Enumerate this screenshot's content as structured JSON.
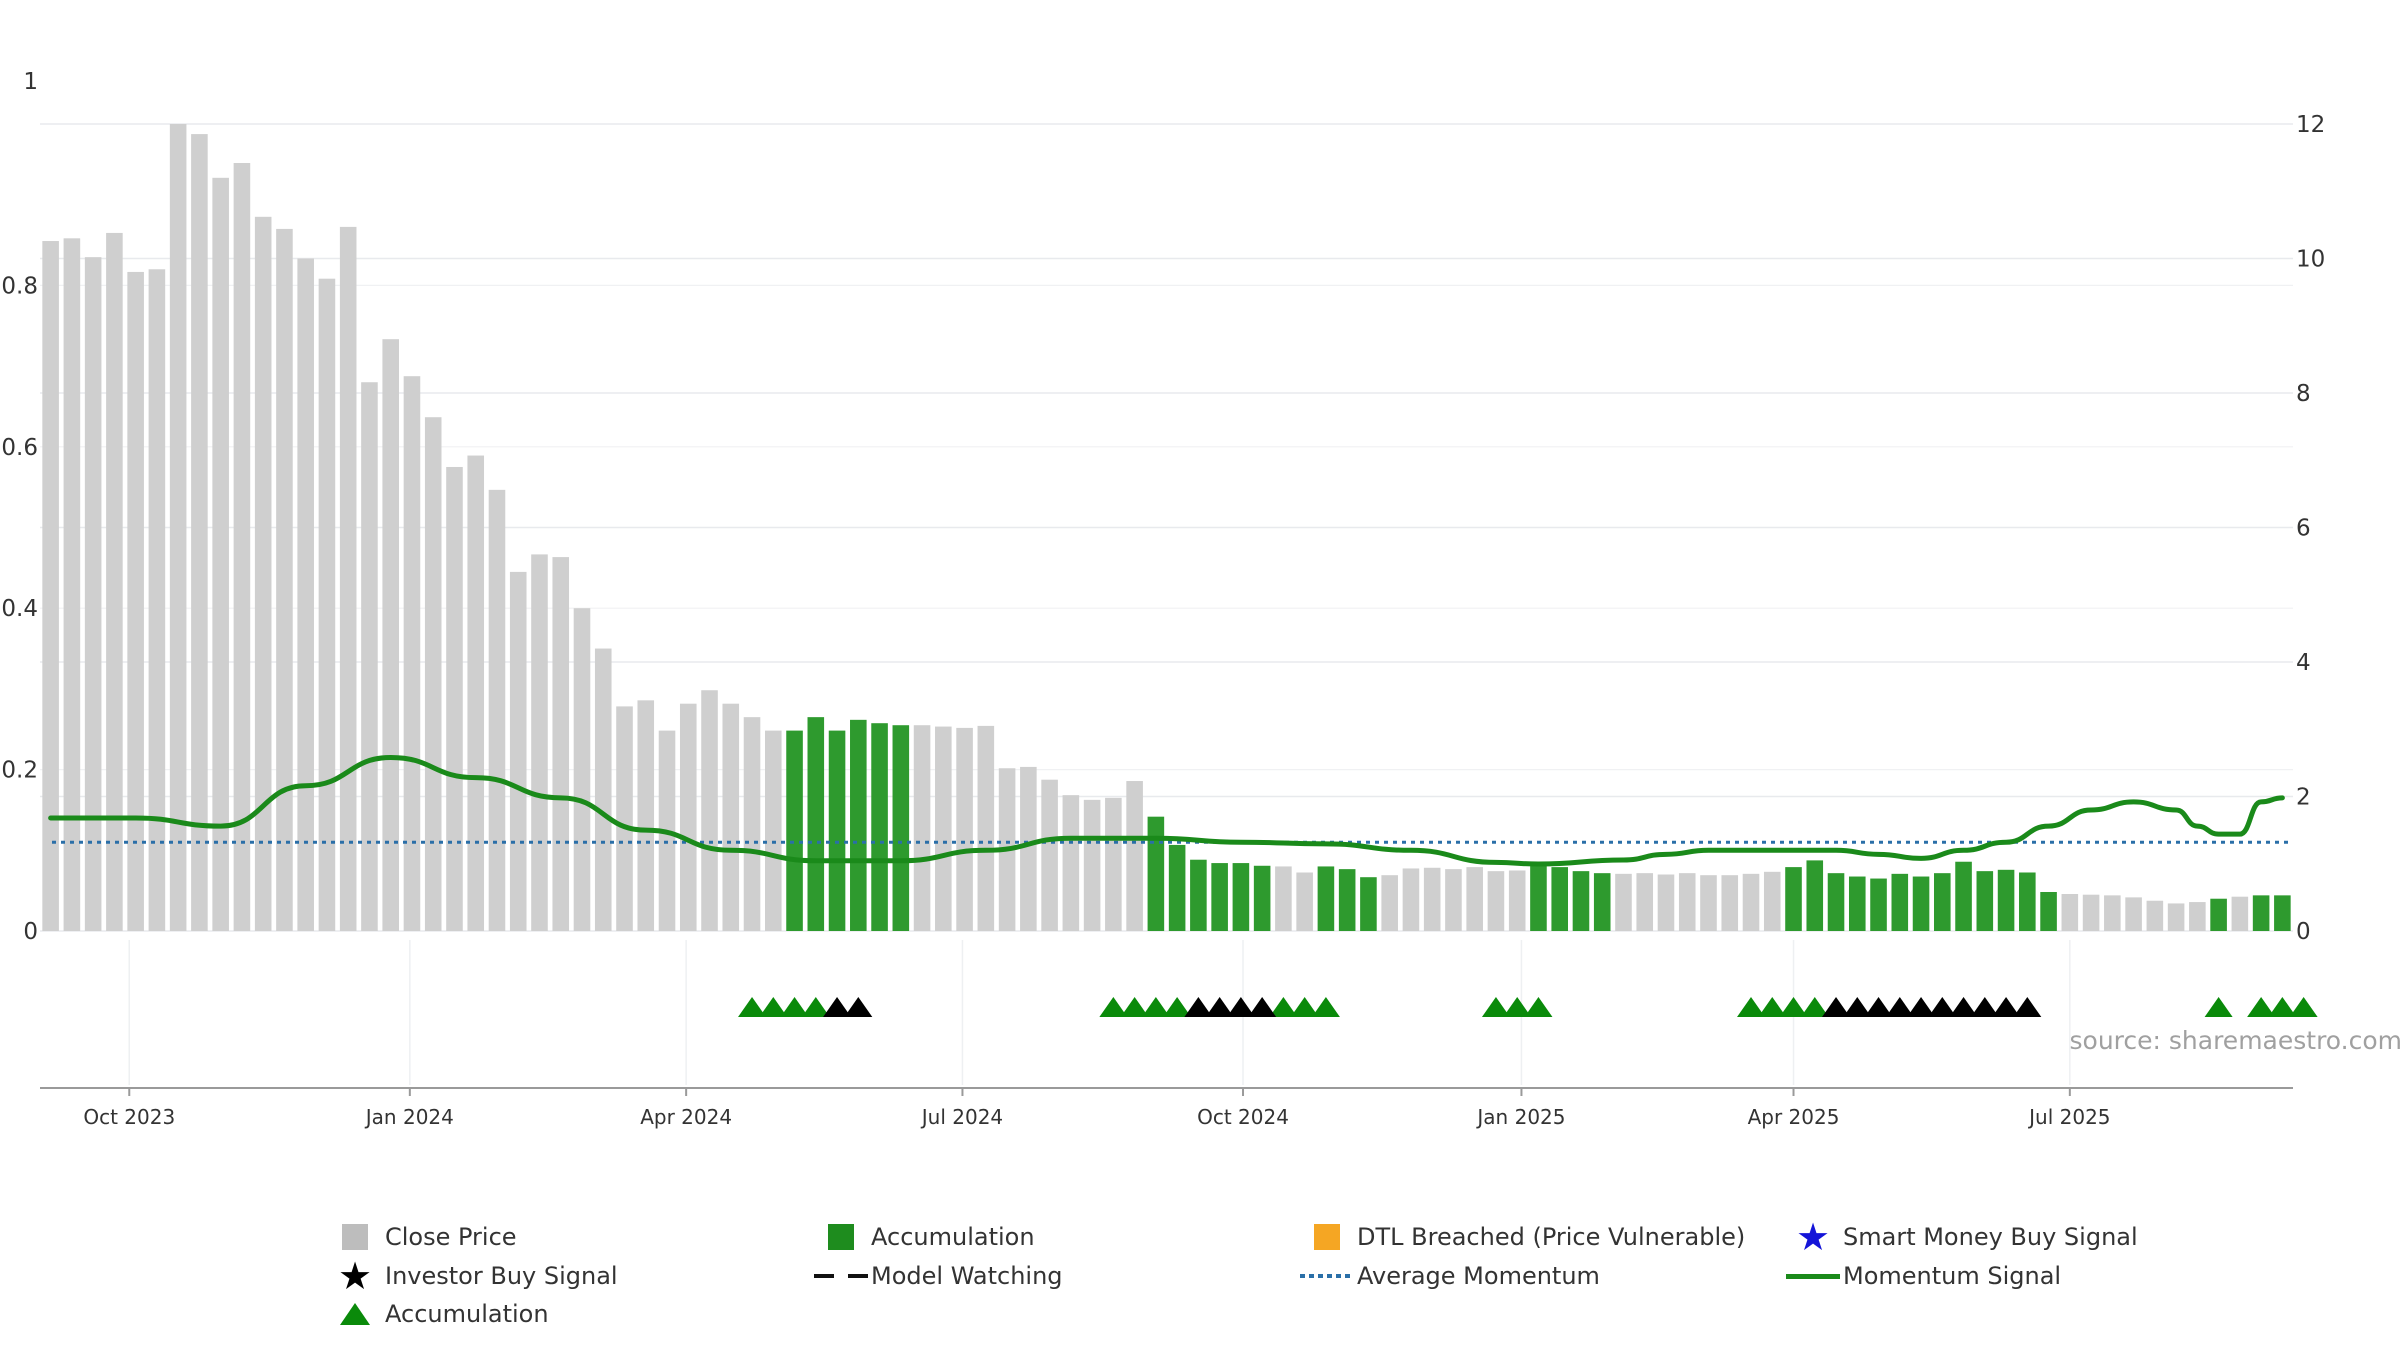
{
  "chart_data": {
    "type": "bar",
    "source_text": "source: sharemaestro.com",
    "left_axis": {
      "ylim": [
        0,
        1
      ],
      "ticks": [
        "0",
        "0.2",
        "0.4",
        "0.6",
        "0.8",
        "1"
      ]
    },
    "right_axis": {
      "ylim": [
        0,
        12
      ],
      "ticks": [
        "0",
        "2",
        "4",
        "6",
        "8",
        "10",
        "12"
      ]
    },
    "x_ticks": [
      "Oct 2023",
      "Jan 2024",
      "Apr 2024",
      "Jul 2024",
      "Oct 2024",
      "Jan 2025",
      "Apr 2025",
      "Jul 2025"
    ],
    "grid": true,
    "legend_position": "bottom",
    "colors": {
      "close_price": "#cfcfcf",
      "accumulation": "#2e9a2e",
      "dtl_breached": "#f5a623",
      "smart_money": "#1414d8",
      "investor_buy": "#000000",
      "avg_momentum": "#2a6fa8",
      "momentum": "#1a8a1a"
    },
    "legend": [
      {
        "label": "Close Price",
        "symbol": "gray-square"
      },
      {
        "label": "Accumulation",
        "symbol": "green-square"
      },
      {
        "label": "DTL Breached (Price Vulnerable)",
        "symbol": "orange-square"
      },
      {
        "label": "Smart Money Buy Signal",
        "symbol": "blue-star"
      },
      {
        "label": "Investor Buy Signal",
        "symbol": "black-star"
      },
      {
        "label": "Model Watching",
        "symbol": "black-dashed-line"
      },
      {
        "label": "Average Momentum",
        "symbol": "blue-dotted-line"
      },
      {
        "label": "Momentum Signal",
        "symbol": "green-line"
      },
      {
        "label": "Accumulation",
        "symbol": "green-triangle"
      }
    ],
    "close_price": {
      "values": [
        10.26,
        10.3,
        10.02,
        10.38,
        9.8,
        9.84,
        12,
        11.85,
        11.2,
        11.42,
        10.62,
        10.44,
        10.0,
        9.7,
        10.47,
        8.16,
        8.8,
        8.25,
        7.64,
        6.9,
        7.07,
        6.56,
        5.34,
        5.6,
        5.56,
        4.8,
        4.2,
        3.34,
        3.43,
        2.98,
        3.38,
        3.58,
        3.38,
        3.18,
        2.98,
        2.98,
        3.18,
        2.98,
        3.14,
        3.09,
        3.06,
        3.06,
        3.04,
        3.02,
        3.05,
        2.42,
        2.44,
        2.25,
        2.02,
        1.95,
        1.98,
        2.23,
        1.7,
        1.28,
        1.06,
        1.01,
        1.01,
        0.97,
        0.96,
        0.87,
        0.96,
        0.92,
        0.8,
        0.83,
        0.93,
        0.94,
        0.92,
        0.95,
        0.89,
        0.9,
        0.99,
        0.95,
        0.89,
        0.86,
        0.85,
        0.86,
        0.84,
        0.86,
        0.83,
        0.83,
        0.85,
        0.88,
        0.95,
        1.05,
        0.86,
        0.81,
        0.78,
        0.85,
        0.81,
        0.86,
        1.03,
        0.89,
        0.91,
        0.87,
        0.58,
        0.55,
        0.54,
        0.53,
        0.5,
        0.45,
        0.41,
        0.43,
        0.48,
        0.51,
        0.53,
        0.53
      ],
      "accumulation_flags": [
        0,
        0,
        0,
        0,
        0,
        0,
        0,
        0,
        0,
        0,
        0,
        0,
        0,
        0,
        0,
        0,
        0,
        0,
        0,
        0,
        0,
        0,
        0,
        0,
        0,
        0,
        0,
        0,
        0,
        0,
        0,
        0,
        0,
        0,
        0,
        1,
        1,
        1,
        1,
        1,
        1,
        0,
        0,
        0,
        0,
        0,
        0,
        0,
        0,
        0,
        0,
        0,
        1,
        1,
        1,
        1,
        1,
        1,
        0,
        0,
        1,
        1,
        1,
        0,
        0,
        0,
        0,
        0,
        0,
        0,
        1,
        1,
        1,
        1,
        0,
        0,
        0,
        0,
        0,
        0,
        0,
        0,
        1,
        1,
        1,
        1,
        1,
        1,
        1,
        1,
        1,
        1,
        1,
        1,
        1,
        0,
        0,
        0,
        0,
        0,
        0,
        0,
        1,
        0,
        1,
        1,
        1
      ]
    },
    "momentum_signal": {
      "x": [
        0,
        4,
        8,
        12,
        16,
        20,
        24,
        28,
        32,
        36,
        40,
        44,
        48,
        52,
        56,
        60,
        64,
        68,
        70,
        74,
        76,
        78,
        80,
        82,
        84,
        86,
        88,
        90,
        92,
        94,
        96,
        98,
        100,
        101,
        102,
        103,
        104,
        105
      ],
      "values": [
        0.14,
        0.14,
        0.13,
        0.18,
        0.215,
        0.19,
        0.165,
        0.125,
        0.1,
        0.087,
        0.087,
        0.1,
        0.115,
        0.115,
        0.11,
        0.108,
        0.1,
        0.085,
        0.083,
        0.088,
        0.095,
        0.1,
        0.1,
        0.1,
        0.1,
        0.095,
        0.09,
        0.1,
        0.11,
        0.13,
        0.15,
        0.16,
        0.15,
        0.13,
        0.12,
        0.12,
        0.16,
        0.165
      ]
    },
    "average_momentum": 0.11,
    "signals": {
      "accumulation": [
        33,
        34,
        35,
        36,
        50,
        51,
        52,
        53,
        58,
        59,
        60,
        68,
        69,
        70,
        80,
        81,
        82,
        83,
        102,
        104,
        105,
        106
      ],
      "investor_buy": [
        37,
        38,
        54,
        55,
        56,
        57,
        84,
        85,
        86,
        87,
        88,
        89,
        90,
        91,
        92,
        93
      ]
    }
  }
}
